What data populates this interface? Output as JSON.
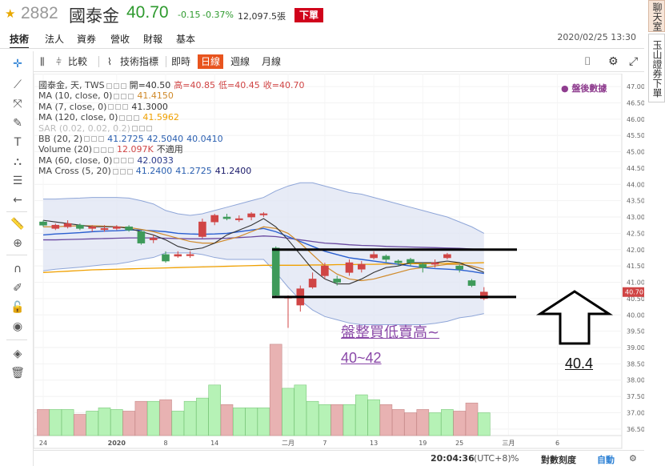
{
  "header": {
    "code": "2882",
    "name": "國泰金",
    "price": "40.70",
    "change": "-0.15",
    "change_pct": "-0.37%",
    "volume": "12,097.5張",
    "order_button": "下單",
    "datetime": "2020/02/25 13:30"
  },
  "nav_tabs": [
    "技術",
    "法人",
    "資券",
    "營收",
    "財報",
    "基本"
  ],
  "side_tabs": {
    "chat": "聊天室",
    "esun": "玉山證券下單"
  },
  "toolbar": {
    "compare": "比較",
    "indicators": "技術指標",
    "realtime": "即時",
    "daily": "日線",
    "weekly": "週線",
    "monthly": "月線"
  },
  "legend": [
    {
      "name": "國泰金, 天, TWS",
      "values": [
        "開=40.50",
        "高=40.85",
        "低=40.45",
        "收=40.70"
      ],
      "colors": [
        "#333333",
        "#d04545",
        "#d04545",
        "#d04545"
      ]
    },
    {
      "name": "MA (10, close, 0)",
      "values": [
        "41.4150"
      ],
      "colors": [
        "#d08a2a"
      ]
    },
    {
      "name": "MA (7, close, 0)",
      "values": [
        "41.3000"
      ],
      "colors": [
        "#333333"
      ]
    },
    {
      "name": "MA (120, close, 0)",
      "values": [
        "41.5962"
      ],
      "colors": [
        "#f0a000"
      ]
    },
    {
      "name": "SAR (0.02, 0.02, 0.2)",
      "values": [],
      "colors": []
    },
    {
      "name": "BB (20, 2)",
      "values": [
        "41.2725",
        "42.5040",
        "40.0410"
      ],
      "colors": [
        "#2a5fb0",
        "#2a5fb0",
        "#2a5fb0"
      ]
    },
    {
      "name": "Volume (20)",
      "values": [
        "12.097K",
        "不適用"
      ],
      "colors": [
        "#d04545",
        "#333333"
      ]
    },
    {
      "name": "MA (60, close, 0)",
      "values": [
        "42.0033"
      ],
      "colors": [
        "#2a3a8a"
      ]
    },
    {
      "name": "MA Cross (5, 20)",
      "values": [
        "41.2400",
        "41.2725",
        "41.2400"
      ],
      "colors": [
        "#2a5fb0",
        "#2a5fb0",
        "#1a1a6a"
      ]
    }
  ],
  "after_hours": "盤後數據",
  "annotations": {
    "line1": "盤整買低賣高~",
    "line2": "40~42",
    "line3": "40.4"
  },
  "chart_data": {
    "type": "candlestick",
    "y_ticks": [
      "47.00",
      "46.50",
      "46.00",
      "45.50",
      "45.00",
      "44.50",
      "44.00",
      "43.50",
      "43.00",
      "42.50",
      "42.00",
      "41.50",
      "41.00",
      "40.50",
      "40.00",
      "39.50",
      "39.00",
      "38.50",
      "38.00",
      "37.50",
      "37.00",
      "36.50"
    ],
    "ylim": [
      36.3,
      47.1
    ],
    "x_labels": [
      {
        "i": 0,
        "text": "24"
      },
      {
        "i": 6,
        "text": "2020"
      },
      {
        "i": 10,
        "text": "8"
      },
      {
        "i": 14,
        "text": "14"
      },
      {
        "i": 20,
        "text": "二月"
      },
      {
        "i": 23,
        "text": "7"
      },
      {
        "i": 27,
        "text": "13"
      },
      {
        "i": 31,
        "text": "19"
      },
      {
        "i": 34,
        "text": "25"
      },
      {
        "i": 38,
        "text": "三月"
      },
      {
        "i": 42,
        "text": "6"
      }
    ],
    "current_price_label": "40.70",
    "candles": [
      {
        "o": 42.85,
        "c": 42.75,
        "h": 42.9,
        "l": 42.7
      },
      {
        "o": 42.65,
        "c": 42.75,
        "h": 42.8,
        "l": 42.6
      },
      {
        "o": 42.7,
        "c": 42.8,
        "h": 42.9,
        "l": 42.65
      },
      {
        "o": 42.75,
        "c": 42.65,
        "h": 42.8,
        "l": 42.6
      },
      {
        "o": 42.65,
        "c": 42.7,
        "h": 42.75,
        "l": 42.55
      },
      {
        "o": 42.65,
        "c": 42.65,
        "h": 42.75,
        "l": 42.55
      },
      {
        "o": 42.65,
        "c": 42.7,
        "h": 42.75,
        "l": 42.6
      },
      {
        "o": 42.7,
        "c": 42.6,
        "h": 42.75,
        "l": 42.55
      },
      {
        "o": 42.55,
        "c": 42.2,
        "h": 42.6,
        "l": 42.15
      },
      {
        "o": 42.3,
        "c": 42.35,
        "h": 42.45,
        "l": 42.2
      },
      {
        "o": 41.85,
        "c": 41.65,
        "h": 41.95,
        "l": 41.6
      },
      {
        "o": 41.8,
        "c": 41.85,
        "h": 41.95,
        "l": 41.75
      },
      {
        "o": 41.85,
        "c": 41.85,
        "h": 41.95,
        "l": 41.75
      },
      {
        "o": 42.4,
        "c": 42.85,
        "h": 42.95,
        "l": 42.35
      },
      {
        "o": 42.85,
        "c": 43.05,
        "h": 43.1,
        "l": 42.75
      },
      {
        "o": 43.0,
        "c": 42.95,
        "h": 43.1,
        "l": 42.9
      },
      {
        "o": 42.95,
        "c": 42.95,
        "h": 43.05,
        "l": 42.85
      },
      {
        "o": 43.0,
        "c": 43.1,
        "h": 43.15,
        "l": 42.9
      },
      {
        "o": 43.1,
        "c": 43.1,
        "h": 43.15,
        "l": 43.0
      },
      {
        "o": 42.05,
        "c": 40.6,
        "h": 42.1,
        "l": 40.55
      },
      {
        "o": 40.55,
        "c": 40.55,
        "h": 40.6,
        "l": 39.6
      },
      {
        "o": 40.3,
        "c": 40.8,
        "h": 40.9,
        "l": 40.1
      },
      {
        "o": 40.85,
        "c": 41.1,
        "h": 41.3,
        "l": 40.8
      },
      {
        "o": 41.2,
        "c": 41.5,
        "h": 41.6,
        "l": 41.1
      },
      {
        "o": 41.1,
        "c": 41.0,
        "h": 41.2,
        "l": 40.9
      },
      {
        "o": 41.3,
        "c": 41.6,
        "h": 41.7,
        "l": 41.2
      },
      {
        "o": 41.4,
        "c": 41.55,
        "h": 41.65,
        "l": 41.3
      },
      {
        "o": 41.75,
        "c": 41.85,
        "h": 41.95,
        "l": 41.7
      },
      {
        "o": 41.8,
        "c": 41.7,
        "h": 41.85,
        "l": 41.6
      },
      {
        "o": 41.65,
        "c": 41.6,
        "h": 41.7,
        "l": 41.5
      },
      {
        "o": 41.7,
        "c": 41.6,
        "h": 41.75,
        "l": 41.5
      },
      {
        "o": 41.55,
        "c": 41.45,
        "h": 41.6,
        "l": 41.3
      },
      {
        "o": 41.55,
        "c": 41.6,
        "h": 41.7,
        "l": 41.45
      },
      {
        "o": 41.75,
        "c": 41.85,
        "h": 41.9,
        "l": 41.7
      },
      {
        "o": 41.5,
        "c": 41.4,
        "h": 41.55,
        "l": 41.3
      },
      {
        "o": 41.05,
        "c": 40.9,
        "h": 41.1,
        "l": 40.85
      },
      {
        "o": 40.5,
        "c": 40.7,
        "h": 40.85,
        "l": 40.45
      }
    ],
    "volumes": [
      37.1,
      37.1,
      37.1,
      36.95,
      37.05,
      37.15,
      37.1,
      37.05,
      37.35,
      37.35,
      37.4,
      37.05,
      37.35,
      37.45,
      37.85,
      37.25,
      37.15,
      37.15,
      37.15,
      39.1,
      37.75,
      37.85,
      37.35,
      37.25,
      37.25,
      37.25,
      37.55,
      37.4,
      37.25,
      37.1,
      37.0,
      37.1,
      37.0,
      37.1,
      37.05,
      37.3,
      37.0
    ],
    "ma7": [
      42.9,
      42.85,
      42.8,
      42.75,
      42.7,
      42.7,
      42.7,
      42.65,
      42.55,
      42.45,
      42.3,
      42.1,
      42.0,
      42.05,
      42.2,
      42.45,
      42.6,
      42.75,
      42.95,
      42.7,
      42.3,
      41.85,
      41.4,
      41.1,
      40.95,
      40.95,
      41.1,
      41.3,
      41.45,
      41.5,
      41.6,
      41.6,
      41.6,
      41.65,
      41.6,
      41.45,
      41.3
    ],
    "ma10": [
      42.7,
      42.7,
      42.72,
      42.73,
      42.73,
      42.72,
      42.7,
      42.68,
      42.62,
      42.55,
      42.45,
      42.35,
      42.25,
      42.2,
      42.2,
      42.3,
      42.4,
      42.55,
      42.7,
      42.65,
      42.5,
      42.2,
      41.85,
      41.5,
      41.25,
      41.1,
      41.05,
      41.1,
      41.2,
      41.3,
      41.4,
      41.45,
      41.5,
      41.55,
      41.55,
      41.5,
      41.4
    ],
    "ma60": [
      42.3,
      42.3,
      42.31,
      42.32,
      42.33,
      42.34,
      42.35,
      42.36,
      42.36,
      42.36,
      42.35,
      42.34,
      42.33,
      42.33,
      42.34,
      42.35,
      42.37,
      42.39,
      42.42,
      42.4,
      42.35,
      42.3,
      42.25,
      42.2,
      42.18,
      42.15,
      42.13,
      42.12,
      42.1,
      42.09,
      42.08,
      42.07,
      42.06,
      42.05,
      42.04,
      42.02,
      42.0
    ],
    "ma120": [
      41.3,
      41.32,
      41.34,
      41.36,
      41.38,
      41.39,
      41.4,
      41.41,
      41.42,
      41.43,
      41.44,
      41.45,
      41.46,
      41.47,
      41.48,
      41.49,
      41.5,
      41.51,
      41.52,
      41.52,
      41.52,
      41.52,
      41.53,
      41.53,
      41.54,
      41.54,
      41.55,
      41.55,
      41.56,
      41.56,
      41.57,
      41.57,
      41.58,
      41.58,
      41.59,
      41.59,
      41.6
    ],
    "bb_mid": [
      42.45,
      42.48,
      42.5,
      42.52,
      42.55,
      42.57,
      42.58,
      42.6,
      42.6,
      42.58,
      42.55,
      42.5,
      42.48,
      42.47,
      42.48,
      42.5,
      42.55,
      42.6,
      42.65,
      42.55,
      42.4,
      42.25,
      42.1,
      41.95,
      41.85,
      41.75,
      41.7,
      41.65,
      41.6,
      41.55,
      41.5,
      41.45,
      41.42,
      41.4,
      41.38,
      41.33,
      41.27
    ],
    "bb_up": [
      43.55,
      43.55,
      43.57,
      43.58,
      43.6,
      43.6,
      43.6,
      43.58,
      43.5,
      43.4,
      43.2,
      43.1,
      43.05,
      43.1,
      43.2,
      43.3,
      43.4,
      43.5,
      43.6,
      43.8,
      43.95,
      44.05,
      44.05,
      43.95,
      43.85,
      43.75,
      43.7,
      43.6,
      43.5,
      43.4,
      43.3,
      43.2,
      43.1,
      43.0,
      42.85,
      42.7,
      42.5
    ],
    "bb_lo": [
      41.35,
      41.4,
      41.43,
      41.46,
      41.5,
      41.54,
      41.56,
      41.62,
      41.7,
      41.76,
      41.9,
      41.9,
      41.9,
      41.85,
      41.76,
      41.7,
      41.7,
      41.7,
      41.7,
      41.3,
      40.85,
      40.45,
      40.15,
      39.95,
      39.85,
      39.75,
      39.7,
      39.7,
      39.7,
      39.7,
      39.7,
      39.7,
      39.74,
      39.8,
      39.91,
      39.96,
      40.04
    ]
  }
}
